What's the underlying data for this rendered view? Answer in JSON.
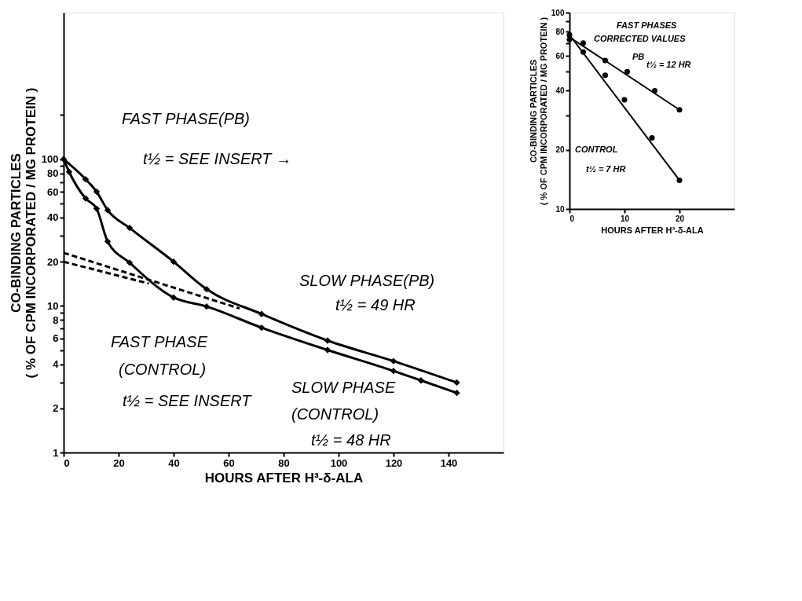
{
  "chart_data": [
    {
      "type": "line",
      "xlabel": "HOURS AFTER H³-δ-ALA",
      "ylabel": "CO-BINDING PARTICLES\n( % OF CPM INCORPORATED / MG PROTEIN )",
      "log": "y",
      "grid": false,
      "xlim": [
        0,
        160
      ],
      "ylim": [
        1,
        1000
      ],
      "xticks": [
        0,
        20,
        40,
        60,
        80,
        100,
        120,
        140
      ],
      "yticks": [
        1,
        2,
        {
          "value": 3,
          "label": null
        },
        4,
        {
          "value": 5,
          "label": null
        },
        6,
        {
          "value": 7,
          "label": null
        },
        8,
        {
          "value": 9,
          "label": null
        },
        10,
        20,
        {
          "value": 30,
          "label": null
        },
        40,
        {
          "value": 50,
          "label": null
        },
        60,
        {
          "value": 70,
          "label": null
        },
        80,
        {
          "value": 90,
          "label": null
        },
        100,
        {
          "value": 200,
          "label": null
        }
      ],
      "series": [
        {
          "color": "#000000",
          "marker": "diamond",
          "line_style": "solid",
          "x": [
            0,
            8,
            12,
            16,
            24,
            40,
            52,
            72,
            96,
            120,
            143
          ],
          "values": [
            100,
            73,
            60,
            45,
            34,
            20,
            13,
            8.8,
            5.8,
            4.2,
            3.0
          ]
        },
        {
          "color": "#000000",
          "marker": "diamond",
          "line_style": "solid",
          "x": [
            0,
            2,
            8,
            12,
            16,
            24,
            40,
            52,
            72,
            96,
            120,
            130,
            143
          ],
          "values": [
            100,
            82,
            54,
            46,
            27.5,
            19.7,
            11.4,
            9.9,
            7.1,
            5.0,
            3.6,
            3.1,
            2.55
          ]
        },
        {
          "color": "#000000",
          "marker": "none",
          "line_style": "dashed",
          "x": [
            0,
            64
          ],
          "values": [
            23,
            9.6
          ]
        },
        {
          "color": "#000000",
          "marker": "none",
          "line_style": "dashed",
          "x": [
            0,
            31
          ],
          "values": [
            20,
            14.2
          ]
        }
      ],
      "annotations": [
        "FAST PHASE(PB)",
        "t½ = SEE INSERT →",
        "FAST PHASE",
        "(CONTROL)",
        "t½ = SEE INSERT",
        "SLOW PHASE(PB)",
        "t½ = 49 HR",
        "SLOW PHASE",
        "(CONTROL)",
        "t½ = 48 HR"
      ]
    },
    {
      "type": "scatter",
      "xlabel": "HOURS AFTER H³-δ-ALA",
      "ylabel": "CO-BINDING PARTICLES\n( % OF CPM INCORPORATED / MG PROTEIN )",
      "log": "y",
      "grid": false,
      "xlim": [
        0,
        30
      ],
      "ylim": [
        10,
        100
      ],
      "xticks": [
        0,
        10,
        20
      ],
      "yticks": [
        10,
        20,
        {
          "value": 30,
          "label": null
        },
        40,
        {
          "value": 50,
          "label": null
        },
        60,
        {
          "value": 70,
          "label": null
        },
        80,
        {
          "value": 90,
          "label": null
        },
        100
      ],
      "series": [
        {
          "color": "#000000",
          "marker": "circle",
          "x": [
            0,
            2.5,
            6.5,
            10.5,
            15.5,
            20
          ],
          "values": [
            73,
            70,
            57,
            50,
            40,
            32
          ]
        },
        {
          "color": "#000000",
          "marker": "circle",
          "x": [
            0,
            2.5,
            6.5,
            10,
            15,
            20
          ],
          "values": [
            77,
            63,
            48,
            36,
            23,
            14
          ]
        },
        {
          "type": "line",
          "color": "#000000",
          "marker": "none",
          "line_style": "solid",
          "x": [
            0,
            20
          ],
          "values": [
            75,
            32
          ]
        },
        {
          "type": "line",
          "color": "#000000",
          "marker": "none",
          "line_style": "solid",
          "x": [
            0,
            20
          ],
          "values": [
            77,
            14
          ]
        }
      ],
      "annotations": [
        "FAST PHASES",
        "CORRECTED VALUES",
        "PB",
        "t½ = 12 HR",
        "CONTROL",
        "t½ = 7 HR"
      ]
    }
  ]
}
